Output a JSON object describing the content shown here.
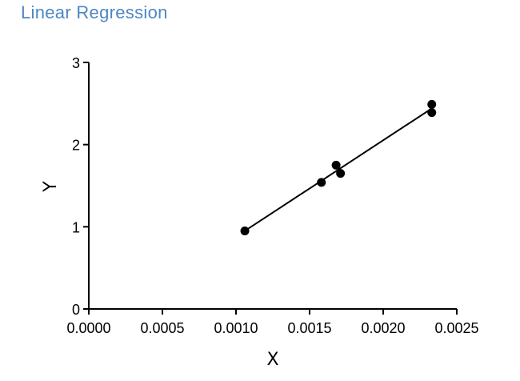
{
  "title": "Linear Regression",
  "chart_data": {
    "type": "scatter",
    "title": "Linear Regression",
    "xlabel": "X",
    "ylabel": "Y",
    "xlim": [
      0,
      0.0025
    ],
    "ylim": [
      0,
      3
    ],
    "x_ticks": [
      "0.0000",
      "0.0005",
      "0.0010",
      "0.0015",
      "0.0020",
      "0.0025"
    ],
    "y_ticks": [
      "0",
      "1",
      "2",
      "3"
    ],
    "grid": false,
    "series": [
      {
        "points": [
          {
            "x": 0.00106,
            "y": 0.95
          },
          {
            "x": 0.00158,
            "y": 1.54
          },
          {
            "x": 0.00168,
            "y": 1.75
          },
          {
            "x": 0.00171,
            "y": 1.65
          },
          {
            "x": 0.00233,
            "y": 2.49
          },
          {
            "x": 0.00233,
            "y": 2.39
          }
        ]
      }
    ],
    "regression_line": {
      "x": [
        0.00106,
        0.00233
      ],
      "y": [
        0.95,
        2.44
      ]
    },
    "colors": {
      "points": "#000000",
      "line": "#000000",
      "title": "#4d87c2"
    }
  }
}
